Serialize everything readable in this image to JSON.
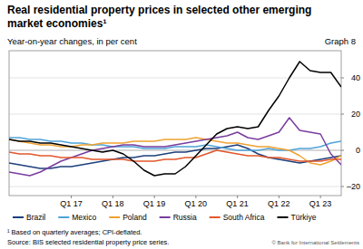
{
  "chart_data": {
    "type": "line",
    "title": "Real residential property prices in selected other emerging market economies¹",
    "subtitle": "Year-on-year changes, in per cent",
    "annotations": [
      "Graph 8",
      "¹ Based on quarterly averages; CPI-deflated.",
      "Source: BIS selected residential property price series.",
      "© Bank for International Settlements"
    ],
    "categories": [
      null,
      null,
      null,
      null,
      null,
      null,
      "Q1 17",
      null,
      null,
      null,
      "Q1 18",
      null,
      null,
      null,
      "Q1 19",
      null,
      null,
      null,
      "Q1 20",
      null,
      null,
      null,
      "Q1 21",
      null,
      null,
      null,
      "Q1 22",
      null,
      null,
      null,
      "Q1 23",
      null,
      null
    ],
    "series": [
      {
        "name": "Brazil",
        "color": "#1d3f7c",
        "values": [
          -7,
          -8,
          -9,
          -10,
          -10,
          -9,
          -9,
          -8,
          -7,
          -6,
          -5,
          -4,
          -4,
          -3,
          -3,
          -2,
          -1,
          -1,
          0,
          1,
          1,
          2,
          3,
          1,
          -2,
          -4,
          -5,
          -6,
          -7,
          -6,
          -5,
          -4,
          -3
        ]
      },
      {
        "name": "Mexico",
        "color": "#4fa3d8",
        "values": [
          7,
          7,
          6,
          6,
          5,
          5,
          4,
          4,
          3,
          3,
          2,
          2,
          2,
          1,
          1,
          1,
          2,
          2,
          2,
          3,
          2,
          1,
          0,
          0,
          0,
          1,
          0,
          0,
          1,
          1,
          2,
          4,
          5
        ]
      },
      {
        "name": "Poland",
        "color": "#f0a232",
        "values": [
          6,
          5,
          4,
          3,
          3,
          2,
          2,
          3,
          3,
          4,
          4,
          4,
          5,
          5,
          5,
          6,
          6,
          6,
          7,
          6,
          5,
          4,
          4,
          3,
          2,
          2,
          1,
          0,
          -3,
          -7,
          -8,
          -6,
          -3
        ]
      },
      {
        "name": "Russia",
        "color": "#7a3d9e",
        "values": [
          -12,
          -13,
          -14,
          -12,
          -9,
          -6,
          -4,
          -2,
          0,
          1,
          2,
          3,
          3,
          2,
          2,
          2,
          3,
          4,
          5,
          6,
          7,
          8,
          10,
          7,
          6,
          8,
          10,
          18,
          11,
          10,
          9,
          -2,
          -8
        ]
      },
      {
        "name": "South Africa",
        "color": "#e2572b",
        "values": [
          -1,
          -2,
          -2,
          -3,
          -3,
          -4,
          -4,
          -4,
          -5,
          -5,
          -5,
          -5,
          -6,
          -6,
          -6,
          -5,
          -5,
          -4,
          -4,
          -2,
          0,
          -1,
          -2,
          -3,
          -3,
          -4,
          -4,
          -5,
          -6,
          -6,
          -6,
          -5,
          -5
        ]
      },
      {
        "name": "Türkiye",
        "color": "#000000",
        "values": [
          6,
          5,
          5,
          4,
          4,
          3,
          2,
          1,
          0,
          -1,
          0,
          -2,
          -6,
          -11,
          -14,
          -13,
          -13,
          -9,
          -3,
          3,
          9,
          12,
          13,
          12,
          13,
          22,
          30,
          40,
          49,
          44,
          43,
          43,
          35
        ]
      }
    ],
    "ylim": [
      -25,
      55
    ],
    "yticks": [
      {
        "value": -20,
        "label": "–20"
      },
      0,
      20,
      40
    ],
    "grid": true,
    "legend": "bottom"
  }
}
